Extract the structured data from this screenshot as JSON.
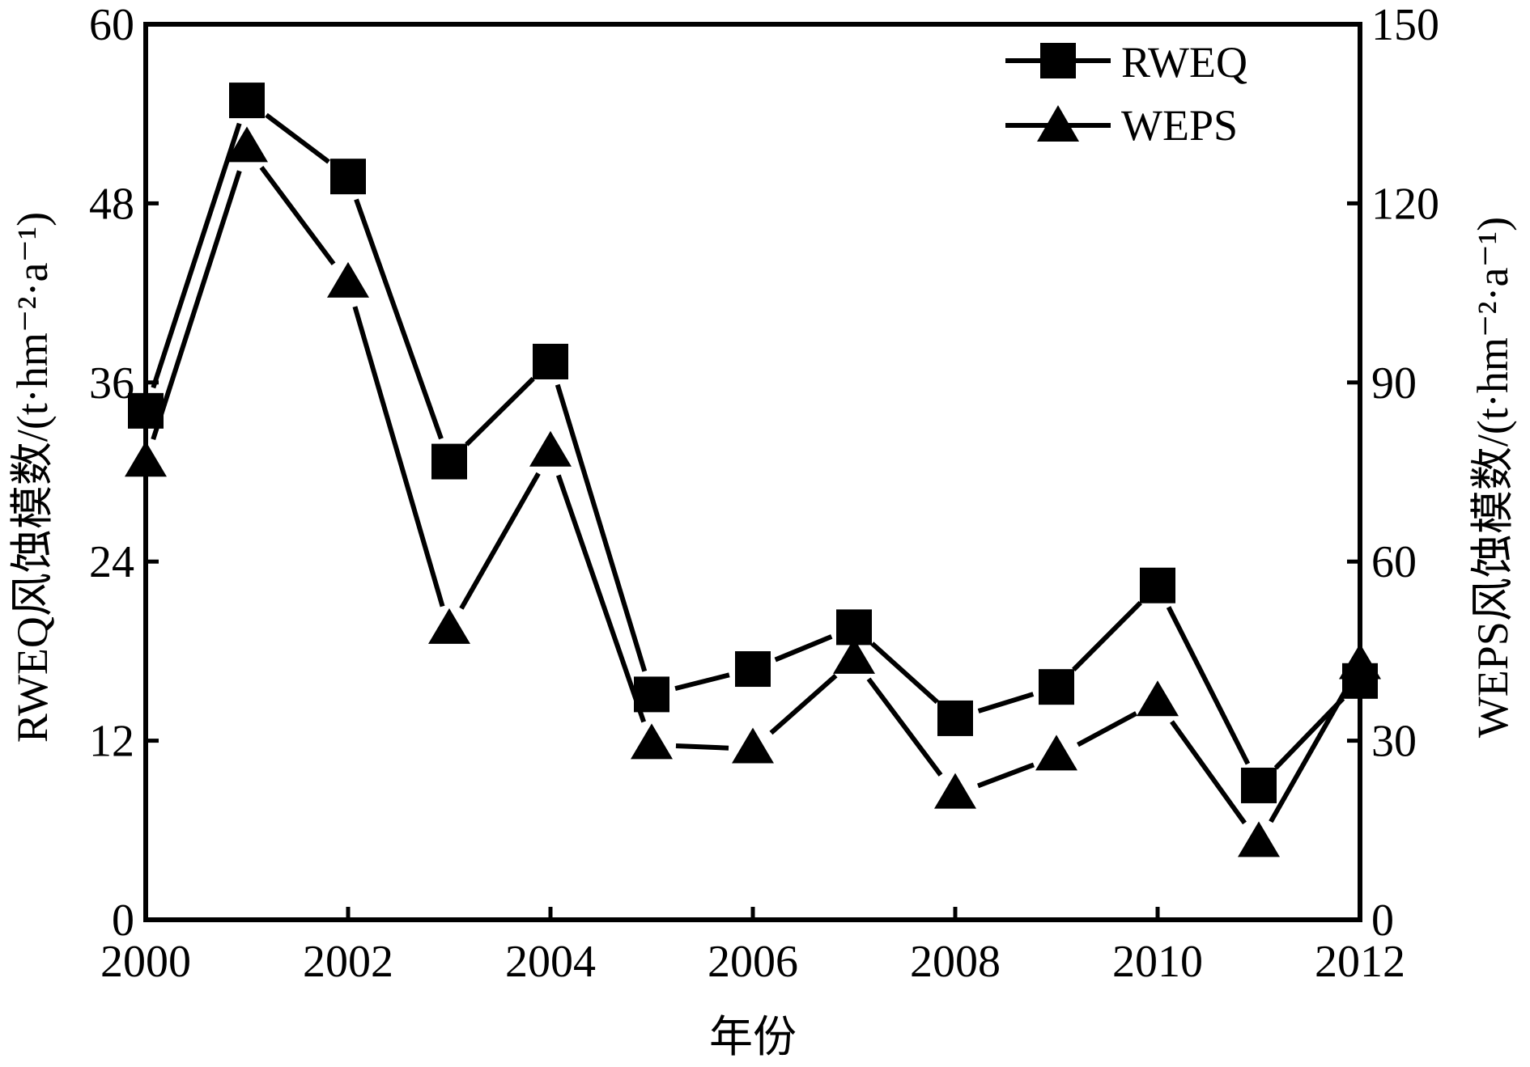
{
  "chart_data": {
    "type": "line",
    "xlabel": "年份",
    "ylabel_left": "RWEQ风蚀模数/(t·hm⁻²·a⁻¹)",
    "ylabel_right": "WEPS风蚀模数/(t·hm⁻²·a⁻¹)",
    "xlim": [
      2000,
      2012
    ],
    "ylim_left": [
      0,
      60
    ],
    "ylim_right": [
      0,
      150
    ],
    "x_ticks": [
      2000,
      2002,
      2004,
      2006,
      2008,
      2010,
      2012
    ],
    "y_ticks_left": [
      0,
      12,
      24,
      36,
      48,
      60
    ],
    "y_ticks_right": [
      0,
      30,
      60,
      90,
      120,
      150
    ],
    "legend_position": "top-right",
    "grid": false,
    "x": [
      2000,
      2001,
      2002,
      2003,
      2004,
      2005,
      2006,
      2007,
      2008,
      2009,
      2010,
      2011,
      2012
    ],
    "series": [
      {
        "name": "RWEQ",
        "axis": "left",
        "marker": "square",
        "values": [
          34.1,
          54.9,
          49.8,
          30.7,
          37.4,
          15.1,
          16.8,
          19.6,
          13.5,
          15.6,
          22.4,
          9.0,
          16.0
        ]
      },
      {
        "name": "WEPS",
        "axis": "right",
        "marker": "triangle",
        "values": [
          76.6,
          129.3,
          106.6,
          48.6,
          78.3,
          29.3,
          28.6,
          43.6,
          21.0,
          27.4,
          36.5,
          12.9,
          42.7
        ]
      }
    ]
  }
}
